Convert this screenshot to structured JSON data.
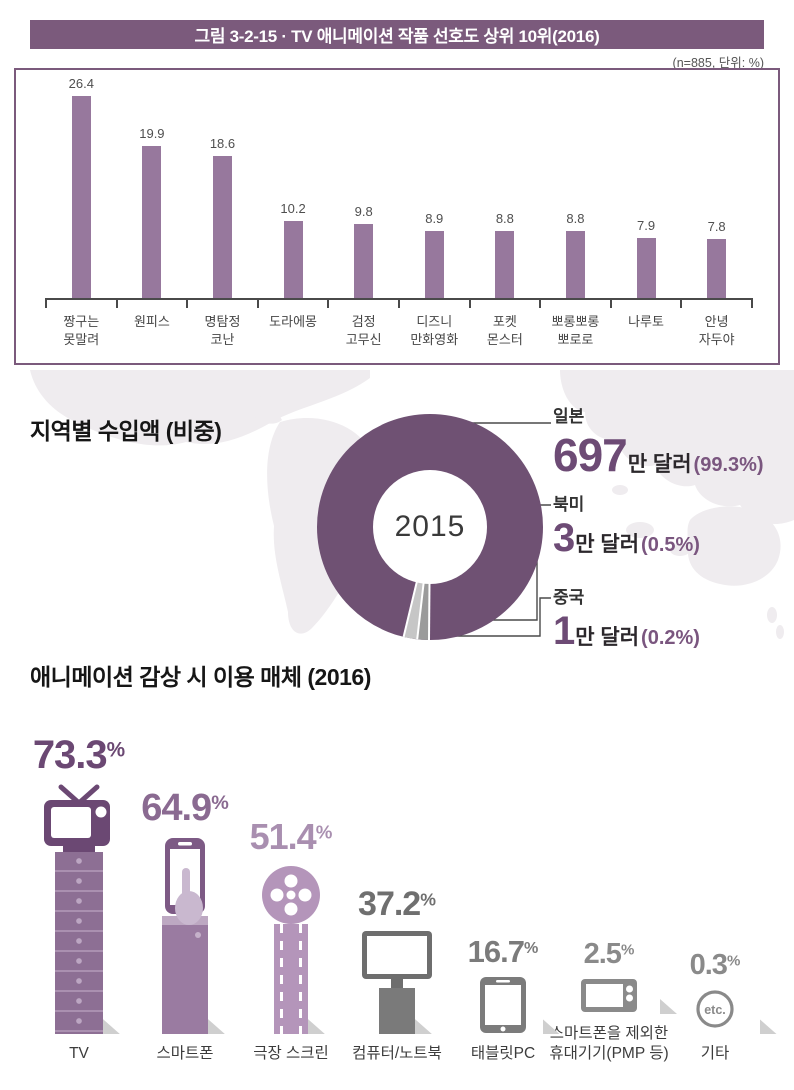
{
  "figure": {
    "title": "그림 3-2-15 · TV 애니메이션 작품 선호도 상위 10위(2016)",
    "note": "(n=885, 단위: %)"
  },
  "top10": {
    "items": [
      {
        "label": "짱구는\n못말려",
        "value": "26.4"
      },
      {
        "label": "원피스",
        "value": "19.9"
      },
      {
        "label": "명탐정\n코난",
        "value": "18.6"
      },
      {
        "label": "도라에몽",
        "value": "10.2"
      },
      {
        "label": "검정\n고무신",
        "value": "9.8"
      },
      {
        "label": "디즈니\n만화영화",
        "value": "8.9"
      },
      {
        "label": "포켓\n몬스터",
        "value": "8.8"
      },
      {
        "label": "뽀롱뽀롱\n뽀로로",
        "value": "8.8"
      },
      {
        "label": "나루토",
        "value": "7.9"
      },
      {
        "label": "안녕\n자두야",
        "value": "7.8"
      }
    ]
  },
  "region": {
    "heading": "지역별 수입액 (비중)",
    "center_year": "2015",
    "entries": [
      {
        "name": "일본",
        "amount": "697",
        "unit": "만 달러",
        "share": "(99.3%)"
      },
      {
        "name": "북미",
        "amount": "3",
        "unit": "만 달러",
        "share": "(0.5%)"
      },
      {
        "name": "중국",
        "amount": "1",
        "unit": "만 달러",
        "share": "(0.2%)"
      }
    ]
  },
  "media": {
    "heading": "애니메이션 감상 시 이용 매체 (2016)",
    "etc_text": "etc.",
    "items": [
      {
        "label": "TV",
        "pct": "73.3",
        "sign": "%"
      },
      {
        "label": "스마트폰",
        "pct": "64.9",
        "sign": "%"
      },
      {
        "label": "극장 스크린",
        "pct": "51.4",
        "sign": "%"
      },
      {
        "label": "컴퓨터/노트북",
        "pct": "37.2",
        "sign": "%"
      },
      {
        "label": "태블릿PC",
        "pct": "16.7",
        "sign": "%"
      },
      {
        "label": "스마트폰을 제외한\n휴대기기(PMP 등)",
        "pct": "2.5",
        "sign": "%"
      },
      {
        "label": "기타",
        "pct": "0.3",
        "sign": "%"
      }
    ]
  },
  "chart_data": [
    {
      "type": "bar",
      "title": "TV 애니메이션 작품 선호도 상위 10위(2016)",
      "n": 885,
      "unit": "%",
      "categories": [
        "짱구는 못말려",
        "원피스",
        "명탐정 코난",
        "도라에몽",
        "검정 고무신",
        "디즈니 만화영화",
        "포켓 몬스터",
        "뽀롱뽀롱 뽀로로",
        "나루토",
        "안녕 자두야"
      ],
      "values": [
        26.4,
        19.9,
        18.6,
        10.2,
        9.8,
        8.9,
        8.8,
        8.8,
        7.9,
        7.8
      ],
      "xlabel": "",
      "ylabel": "",
      "ylim": [
        0,
        28
      ],
      "grid": false,
      "bar_color": "#97789d",
      "value_labels": true
    },
    {
      "type": "pie",
      "title": "지역별 수입액 (비중)",
      "center_label": "2015",
      "categories": [
        "일본",
        "북미",
        "중국"
      ],
      "values": [
        99.3,
        0.5,
        0.2
      ],
      "amounts_만달러": [
        697,
        3,
        1
      ],
      "colors": [
        "#6f5173",
        "#9b9b9b",
        "#c6c6c6"
      ],
      "legend_position": "right"
    },
    {
      "type": "bar",
      "title": "애니메이션 감상 시 이용 매체 (2016)",
      "style": "pictogram",
      "unit": "%",
      "categories": [
        "TV",
        "스마트폰",
        "극장 스크린",
        "컴퓨터/노트북",
        "태블릿PC",
        "스마트폰을 제외한 휴대기기(PMP 등)",
        "기타"
      ],
      "values": [
        73.3,
        64.9,
        51.4,
        37.2,
        16.7,
        2.5,
        0.3
      ]
    }
  ],
  "colors": {
    "accent_purple": "#7b5a7c",
    "bar_purple": "#97789d",
    "donut_purple": "#6f5173",
    "na_slice_gray": "#9b9b9b",
    "cn_slice_gray": "#c6c6c6"
  }
}
